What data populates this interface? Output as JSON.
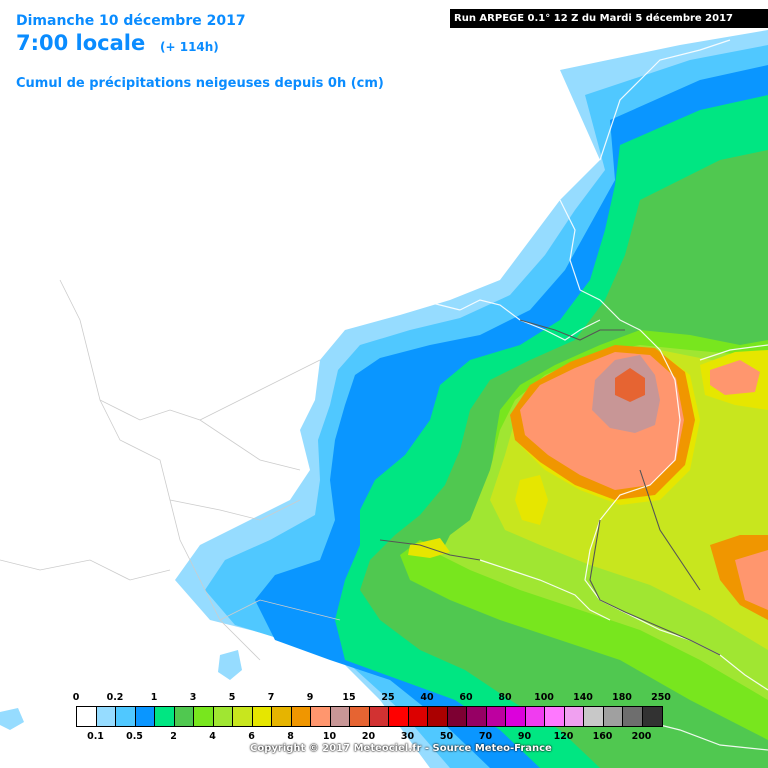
{
  "header": {
    "date": "Dimanche 10 décembre 2017",
    "time": "7:00 locale",
    "lead": "(+ 114h)",
    "subtitle": "Cumul de précipitations neigeuses depuis 0h (cm)",
    "run": "Run ARPEGE 0.1° 12 Z du Mardi 5 décembre 2017"
  },
  "legend": {
    "colors": [
      "#ffffff",
      "#96dcff",
      "#50c8ff",
      "#0a96ff",
      "#00e682",
      "#50c850",
      "#78e61e",
      "#a0e632",
      "#c8e61e",
      "#e6e600",
      "#e6b400",
      "#f09600",
      "#ff966e",
      "#c89696",
      "#e66432",
      "#d23232",
      "#ff0000",
      "#dc0000",
      "#aa0000",
      "#7d0032",
      "#960064",
      "#be00a0",
      "#dc00dc",
      "#f03cf0",
      "#ff78ff",
      "#f0a0f0",
      "#c8c8c8",
      "#a0a0a0",
      "#6e6e6e",
      "#323232"
    ],
    "top_labels": [
      "0",
      "0.2",
      "1",
      "3",
      "5",
      "7",
      "9",
      "15",
      "25",
      "40",
      "60",
      "80",
      "100",
      "140",
      "180",
      "250"
    ],
    "bottom_labels": [
      "0.1",
      "0.5",
      "2",
      "4",
      "6",
      "8",
      "10",
      "20",
      "30",
      "50",
      "70",
      "90",
      "120",
      "160",
      "200"
    ]
  },
  "copyright": "Copyright © 2017 Meteociel.fr - Source Meteo-France"
}
